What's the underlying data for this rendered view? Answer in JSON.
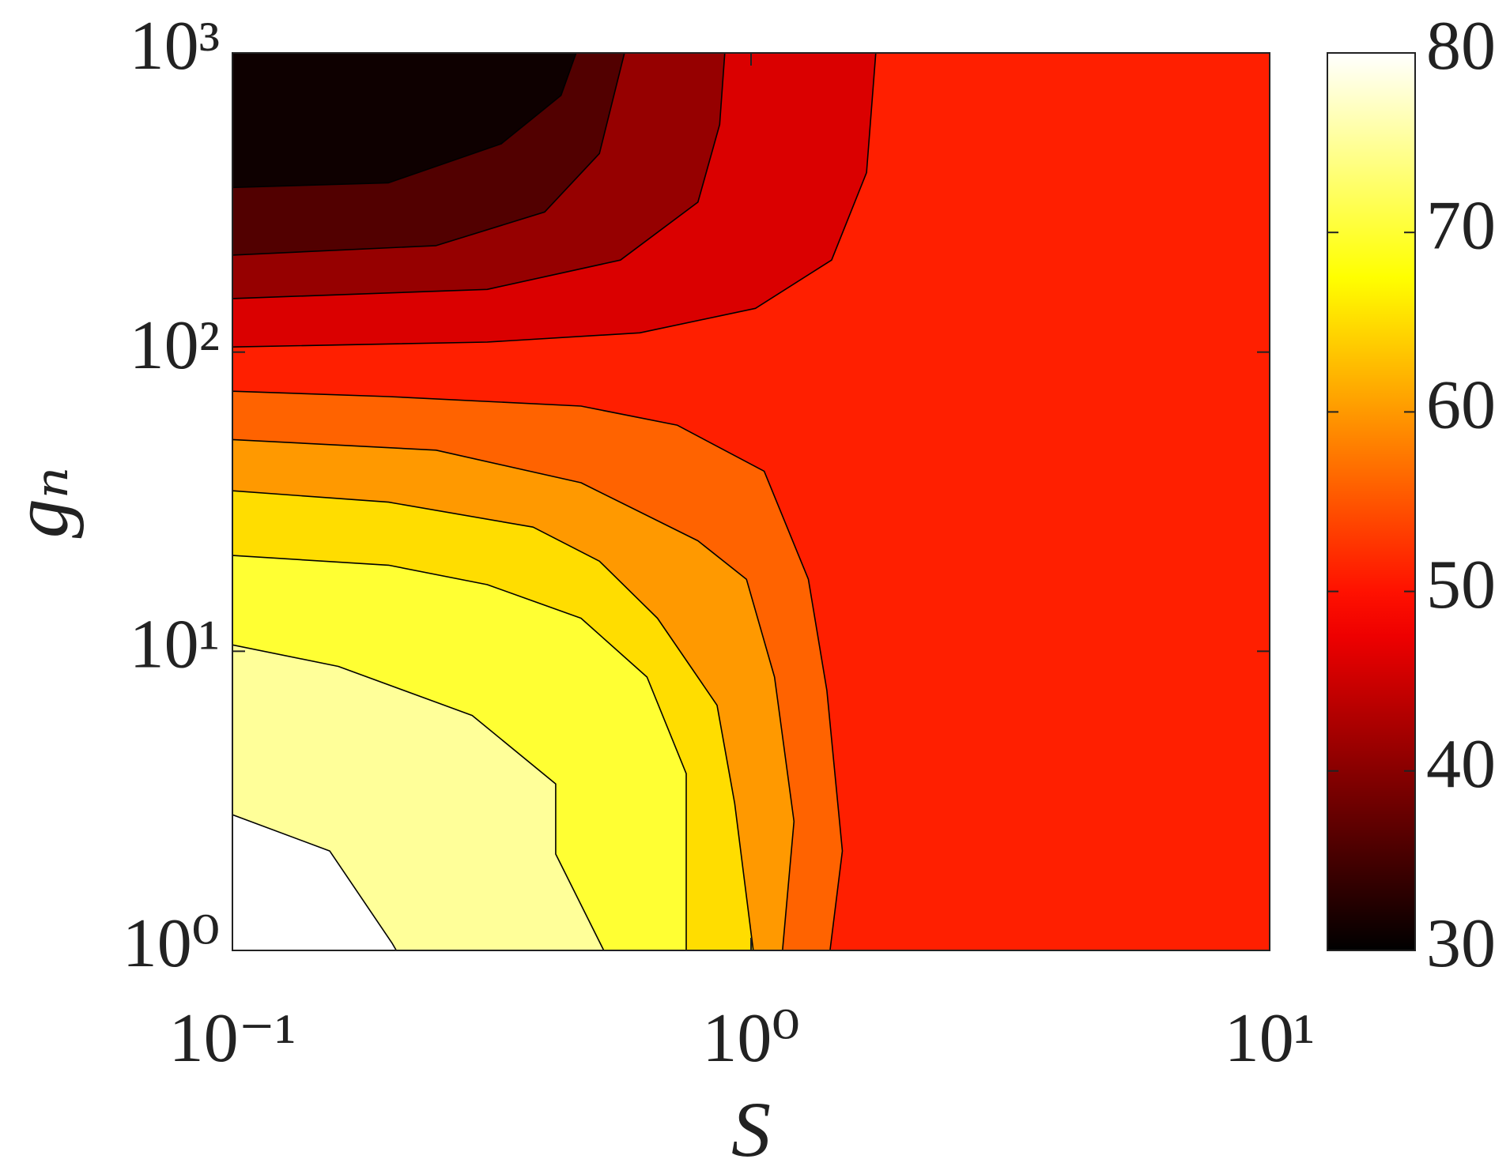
{
  "chart_data": {
    "type": "contour",
    "xlabel": "S",
    "ylabel": "gₙ",
    "xscale": "log",
    "yscale": "log",
    "xlim": [
      0.1,
      10
    ],
    "ylim": [
      1,
      1000
    ],
    "xticks": [
      {
        "value": 0.1,
        "label": "10⁻¹"
      },
      {
        "value": 1,
        "label": "10⁰"
      },
      {
        "value": 10,
        "label": "10¹"
      }
    ],
    "yticks": [
      {
        "value": 1,
        "label": "10⁰"
      },
      {
        "value": 10,
        "label": "10¹"
      },
      {
        "value": 100,
        "label": "10²"
      },
      {
        "value": 1000,
        "label": "10³"
      }
    ],
    "colormap": "hot",
    "clim": [
      30,
      80
    ],
    "cticks": [
      30,
      40,
      50,
      60,
      70,
      80
    ],
    "background": 51,
    "regions": [
      {
        "value": 56,
        "x": [
          0.1,
          0.2,
          0.47,
          0.72,
          1.06,
          1.29,
          1.4,
          1.5,
          1.42,
          0.1
        ],
        "y": [
          74,
          71,
          66,
          57,
          40,
          17.4,
          7.4,
          2.15,
          1,
          1
        ]
      },
      {
        "value": 60,
        "x": [
          0.1,
          0.247,
          0.47,
          0.79,
          0.98,
          1.11,
          1.21,
          1.15,
          0.1
        ],
        "y": [
          51,
          47,
          36.6,
          23.4,
          17.4,
          8.2,
          2.7,
          1,
          1
        ]
      },
      {
        "value": 65,
        "x": [
          0.1,
          0.2,
          0.38,
          0.51,
          0.66,
          0.86,
          0.93,
          1.01,
          0.1
        ],
        "y": [
          34.4,
          31.5,
          26,
          20,
          12.9,
          6.6,
          3.1,
          1,
          1
        ]
      },
      {
        "value": 70,
        "x": [
          0.1,
          0.2,
          0.31,
          0.47,
          0.63,
          0.75,
          0.75,
          0.1
        ],
        "y": [
          20.9,
          19.4,
          16.7,
          12.9,
          8.2,
          3.9,
          1,
          1
        ]
      },
      {
        "value": 75,
        "x": [
          0.1,
          0.16,
          0.29,
          0.42,
          0.42,
          0.52,
          0.1
        ],
        "y": [
          10.5,
          8.9,
          6.1,
          3.6,
          2.1,
          1,
          1
        ]
      },
      {
        "value": 80,
        "x": [
          0.1,
          0.154,
          0.203,
          0.207,
          0.1
        ],
        "y": [
          2.84,
          2.15,
          1.06,
          1,
          1
        ]
      },
      {
        "value": 46,
        "x": [
          0.1,
          0.31,
          0.61,
          1.02,
          1.43,
          1.67,
          1.74,
          0.1
        ],
        "y": [
          104,
          108,
          116,
          140,
          203,
          398,
          1000,
          1000
        ]
      },
      {
        "value": 41,
        "x": [
          0.1,
          0.31,
          0.56,
          0.79,
          0.87,
          0.89,
          0.1
        ],
        "y": [
          151,
          162,
          203,
          317,
          576,
          1000,
          1000
        ]
      },
      {
        "value": 36,
        "x": [
          0.1,
          0.247,
          0.4,
          0.51,
          0.57,
          0.1
        ],
        "y": [
          211,
          227,
          294,
          461,
          1000,
          1000
        ]
      },
      {
        "value": 31,
        "x": [
          0.1,
          0.2,
          0.33,
          0.43,
          0.46,
          0.1
        ],
        "y": [
          355,
          368,
          497,
          721,
          1000,
          1000
        ]
      }
    ]
  }
}
